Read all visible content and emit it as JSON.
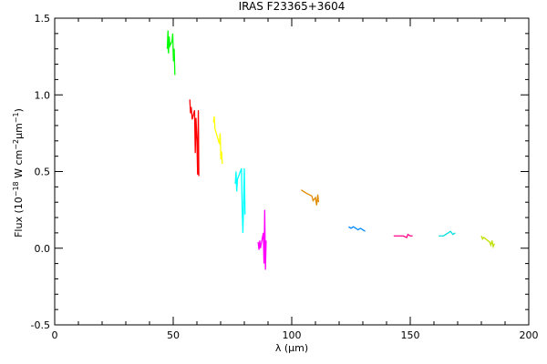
{
  "chart_data": {
    "type": "line",
    "title": "IRAS F23365+3604",
    "xlabel": "λ (μm)",
    "ylabel": [
      {
        "text": "Flux (10",
        "sup": false
      },
      {
        "text": "−18",
        "sup": true
      },
      {
        "text": " W cm",
        "sup": false
      },
      {
        "text": "−2",
        "sup": true
      },
      {
        "text": "μm",
        "sup": false
      },
      {
        "text": "−1",
        "sup": true
      },
      {
        "text": ")",
        "sup": false
      }
    ],
    "xlim": [
      0,
      200
    ],
    "xticks": [
      0,
      50,
      100,
      150,
      200
    ],
    "xminorticks": [
      10,
      20,
      30,
      40,
      60,
      70,
      80,
      90,
      110,
      120,
      130,
      140,
      160,
      170,
      180,
      190
    ],
    "ylim": [
      -0.5,
      1.5
    ],
    "yticks": [
      {
        "value": -0.5,
        "label": "-0.5"
      },
      {
        "value": 0,
        "label": "0.0"
      },
      {
        "value": 0.5,
        "label": "0.5"
      },
      {
        "value": 1,
        "label": "1.0"
      },
      {
        "value": 1.5,
        "label": "1.5"
      }
    ],
    "yminorticks": [
      -0.4,
      -0.3,
      -0.2,
      -0.1,
      0.1,
      0.2,
      0.3,
      0.4,
      0.6,
      0.7,
      0.8,
      0.9,
      1.1,
      1.2,
      1.3,
      1.4
    ],
    "series": [
      {
        "color": "#00ff00",
        "x": [
          47.5,
          47.8,
          48.0,
          48.3,
          48.6,
          49.5,
          49.8,
          50.1,
          50.4,
          50.7
        ],
        "values": [
          1.3,
          1.42,
          1.27,
          1.38,
          1.32,
          1.35,
          1.4,
          1.22,
          1.3,
          1.13
        ]
      },
      {
        "color": "#ff0000",
        "x": [
          57.0,
          57.3,
          57.6,
          58.0,
          59.0,
          59.3,
          59.6,
          60.0,
          60.3,
          60.6,
          60.8
        ],
        "values": [
          0.97,
          0.88,
          0.92,
          0.84,
          0.9,
          0.62,
          0.85,
          0.7,
          0.48,
          0.9,
          0.47
        ]
      },
      {
        "color": "#ffff00",
        "x": [
          67.0,
          67.3,
          67.6,
          69.5,
          69.8,
          70.1,
          70.4,
          70.7
        ],
        "values": [
          0.82,
          0.86,
          0.78,
          0.68,
          0.75,
          0.58,
          0.63,
          0.55
        ]
      },
      {
        "color": "#00ffff",
        "x": [
          76.2,
          76.5,
          76.8,
          77.1,
          78.8,
          79.1,
          79.4,
          79.7,
          80.0,
          80.3
        ],
        "values": [
          0.42,
          0.5,
          0.37,
          0.45,
          0.52,
          0.25,
          0.1,
          0.3,
          0.52,
          0.22
        ]
      },
      {
        "color": "#ff00ff",
        "x": [
          85.8,
          86.2,
          86.5,
          86.8,
          88.0,
          88.3,
          88.6,
          88.9,
          89.2
        ],
        "values": [
          0.04,
          -0.01,
          0.05,
          0.0,
          0.1,
          -0.1,
          0.25,
          -0.14,
          0.05
        ]
      },
      {
        "color": "#e08a00",
        "x": [
          104,
          105,
          106,
          108.5,
          109,
          110,
          110.5,
          111,
          111.3
        ],
        "values": [
          0.38,
          0.37,
          0.36,
          0.34,
          0.31,
          0.33,
          0.28,
          0.35,
          0.3
        ]
      },
      {
        "color": "#0088ff",
        "x": [
          124,
          125,
          126,
          128,
          129,
          130,
          131
        ],
        "values": [
          0.14,
          0.13,
          0.14,
          0.12,
          0.13,
          0.12,
          0.11
        ]
      },
      {
        "color": "#ff0088",
        "x": [
          143,
          145,
          147,
          148.5,
          149,
          150,
          151
        ],
        "values": [
          0.08,
          0.08,
          0.08,
          0.07,
          0.09,
          0.08,
          0.08
        ]
      },
      {
        "color": "#00e0e0",
        "x": [
          162,
          164,
          165,
          166,
          167,
          168,
          169
        ],
        "values": [
          0.08,
          0.08,
          0.09,
          0.1,
          0.11,
          0.09,
          0.1
        ]
      },
      {
        "color": "#c0e000",
        "x": [
          180,
          180.5,
          181,
          183.5,
          184,
          184.5,
          185,
          185.5
        ],
        "values": [
          0.08,
          0.06,
          0.07,
          0.04,
          0.02,
          0.05,
          0.01,
          0.03
        ]
      }
    ]
  }
}
